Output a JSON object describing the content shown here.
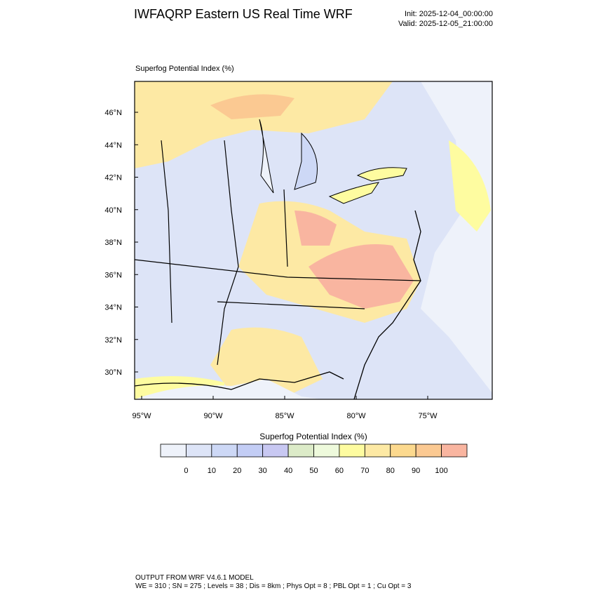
{
  "header": {
    "title": "IWFAQRP Eastern US Real Time WRF",
    "init": "Init: 2025-12-04_00:00:00",
    "valid": "Valid: 2025-12-05_21:00:00"
  },
  "map": {
    "title": "Superfog Potential Index   (%)",
    "lat_labels": [
      "46°N",
      "44°N",
      "42°N",
      "40°N",
      "38°N",
      "36°N",
      "34°N",
      "32°N",
      "30°N"
    ],
    "lon_labels": [
      "95°W",
      "90°W",
      "85°W",
      "80°W",
      "75°W"
    ]
  },
  "colorbar": {
    "title": "Superfog Potential Index  (%)",
    "levels": [
      0,
      10,
      20,
      30,
      40,
      50,
      60,
      70,
      80,
      90,
      100
    ],
    "colors": [
      "#eef2fa",
      "#dde4f7",
      "#cdd8f6",
      "#c3cdf5",
      "#c8c8f2",
      "#dcebc8",
      "#eefadc",
      "#fefca0",
      "#fde9a4",
      "#fcd98e",
      "#fbc992",
      "#f9b5a0"
    ]
  },
  "footer": {
    "line1": "OUTPUT FROM WRF V4.6.1 MODEL",
    "line2": "WE = 310 ; SN = 275 ; Levels = 38 ; Dis = 8km ; Phys Opt = 8 ; PBL Opt = 1 ; Cu Opt = 3"
  }
}
